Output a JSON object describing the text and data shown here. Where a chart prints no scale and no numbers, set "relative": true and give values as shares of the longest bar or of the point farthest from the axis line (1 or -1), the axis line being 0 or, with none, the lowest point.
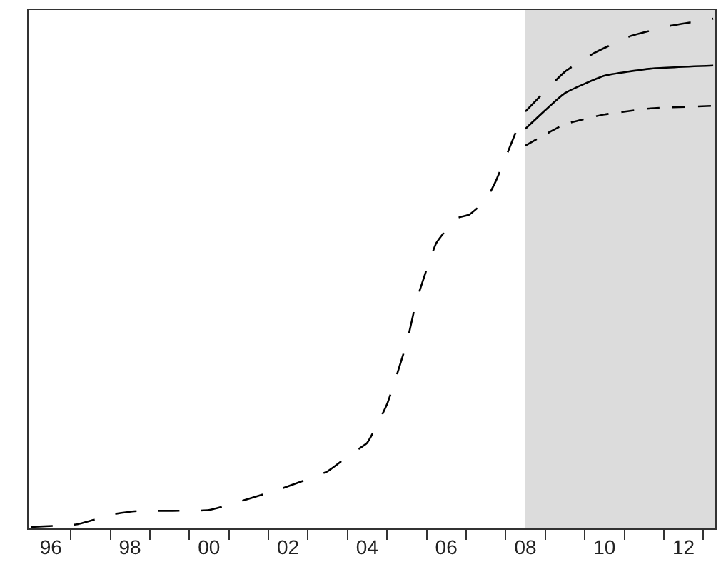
{
  "chart_data": {
    "type": "line",
    "relative": true,
    "xlim": [
      "1995-12-08",
      "2013-04-20"
    ],
    "xticks": [
      {
        "value": "1996-07-01",
        "label": "96"
      },
      {
        "value": "1998-07-01",
        "label": "98"
      },
      {
        "value": "2000-07-01",
        "label": "00"
      },
      {
        "value": "2002-07-01",
        "label": "02"
      },
      {
        "value": "2004-07-01",
        "label": "04"
      },
      {
        "value": "2006-07-01",
        "label": "06"
      },
      {
        "value": "2008-07-01",
        "label": "08"
      },
      {
        "value": "2010-07-01",
        "label": "10"
      },
      {
        "value": "2012-07-01",
        "label": "12"
      },
      {
        "value": "1997-01-01",
        "label": null
      },
      {
        "value": "1998-01-01",
        "label": null
      },
      {
        "value": "1999-01-01",
        "label": null
      },
      {
        "value": "2000-01-01",
        "label": null
      },
      {
        "value": "2001-01-01",
        "label": null
      },
      {
        "value": "2002-01-01",
        "label": null
      },
      {
        "value": "2003-01-01",
        "label": null
      },
      {
        "value": "2004-01-01",
        "label": null
      },
      {
        "value": "2005-01-01",
        "label": null
      },
      {
        "value": "2006-01-01",
        "label": null
      },
      {
        "value": "2007-01-01",
        "label": null
      },
      {
        "value": "2008-01-01",
        "label": null
      },
      {
        "value": "2009-01-01",
        "label": null
      },
      {
        "value": "2010-01-01",
        "label": null
      },
      {
        "value": "2011-01-01",
        "label": null
      },
      {
        "value": "2012-01-01",
        "label": null
      },
      {
        "value": "2013-01-01",
        "label": null
      }
    ],
    "tick_labels": "x",
    "grid": false,
    "marker": "none",
    "bands": [
      {
        "axis": "x",
        "from": "2008-07",
        "to": "2013-04-20",
        "color": "#dcdcdc"
      }
    ],
    "series": [
      {
        "color": "#000000",
        "line_style": "dashed",
        "x": [
          "1996-01",
          "1997-03",
          "1998-02",
          "1998-09",
          "2000-07",
          "2001-06",
          "2002-05",
          "2003-07",
          "2004-02",
          "2004-07",
          "2005-01",
          "2005-07",
          "2005-10",
          "2006-04",
          "2006-10",
          "2007-02",
          "2007-07",
          "2007-10",
          "2008-04"
        ],
        "values": [
          0.003,
          0.008,
          0.028,
          0.034,
          0.036,
          0.056,
          0.078,
          0.112,
          0.146,
          0.168,
          0.244,
          0.364,
          0.448,
          0.56,
          0.608,
          0.616,
          0.644,
          0.681,
          0.776
        ]
      },
      {
        "color": "#000000",
        "line_style": "dashed",
        "x": [
          "2008-07",
          "2009-07",
          "2010-04",
          "2011-03",
          "2012-03",
          "2013-04"
        ],
        "values": [
          0.818,
          0.896,
          0.933,
          0.966,
          0.986,
          1.0
        ]
      },
      {
        "color": "#000000",
        "line_style": "solid",
        "x": [
          "2008-07",
          "2009-07",
          "2010-07",
          "2011-09",
          "2013-04"
        ],
        "values": [
          0.784,
          0.854,
          0.888,
          0.902,
          0.908
        ]
      },
      {
        "color": "#000000",
        "line_style": "dotted",
        "x": [
          "2008-07",
          "2009-07",
          "2010-07",
          "2011-09",
          "2013-04"
        ],
        "values": [
          0.751,
          0.793,
          0.812,
          0.824,
          0.829
        ]
      }
    ]
  }
}
